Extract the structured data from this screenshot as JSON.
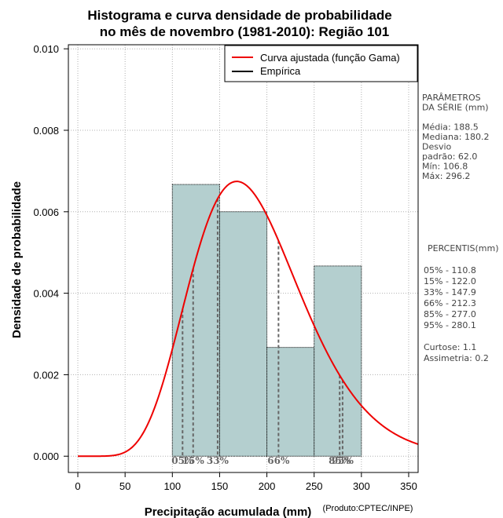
{
  "chart_data": {
    "type": "histogram",
    "title_line1": "Histograma e curva densidade de probabilidade",
    "title_line2": "no mês de novembro (1981-2010): Região 101",
    "xlabel": "Precipitação acumulada (mm)",
    "ylabel": "Densidade de probabilidade",
    "credit": "(Produto:CPTEC/INPE)",
    "xlim": [
      -10,
      360
    ],
    "ylim": [
      -0.0004,
      0.0101
    ],
    "x_ticks": [
      0,
      50,
      100,
      150,
      200,
      250,
      300,
      350
    ],
    "y_ticks": [
      0.0,
      0.002,
      0.004,
      0.006,
      0.008,
      0.01
    ],
    "y_tick_labels": [
      "0.000",
      "0.002",
      "0.004",
      "0.006",
      "0.008",
      "0.010"
    ],
    "grid": true,
    "bins": [
      {
        "start": 100,
        "end": 150,
        "density": 0.00667
      },
      {
        "start": 150,
        "end": 200,
        "density": 0.006
      },
      {
        "start": 200,
        "end": 250,
        "density": 0.00267
      },
      {
        "start": 250,
        "end": 300,
        "density": 0.00467
      }
    ],
    "gamma_fit": {
      "mean": 188.5,
      "sd": 62.0
    },
    "legend": {
      "position": "top-right",
      "entries": [
        {
          "label": "Curva ajustada (função Gama)",
          "color": "#ee0000"
        },
        {
          "label": "Empírica",
          "color": "#000000"
        }
      ]
    },
    "percentile_lines": [
      {
        "x": 110.8,
        "label": "05%"
      },
      {
        "x": 122.0,
        "label": "15%"
      },
      {
        "x": 147.9,
        "label": "33%"
      },
      {
        "x": 212.3,
        "label": "66%"
      },
      {
        "x": 277.0,
        "label": "85%"
      },
      {
        "x": 280.1,
        "label": "95%"
      }
    ],
    "colors": {
      "bar_fill": "#b4cfcf",
      "curve": "#ee0000",
      "grid": "#b0b0b0",
      "percentile": "#666666"
    }
  },
  "stats_panel": {
    "params": [
      "PARÂMETROS",
      " DA SÉRIE (mm)",
      "",
      "Média:  188.5",
      "Mediana:  180.2",
      "Desvio",
      "padrão:  62.0",
      "Mín:  106.8",
      "Máx:  296.2"
    ],
    "percentis": [
      "PERCENTIS(mm)",
      "",
      "05% -  110.8",
      "15% -  122.0",
      "33% -  147.9",
      "66% -  212.3",
      "85% -  277.0",
      "95% -  280.1",
      "",
      "Curtose:  1.1",
      "Assimetria:  0.2"
    ]
  }
}
